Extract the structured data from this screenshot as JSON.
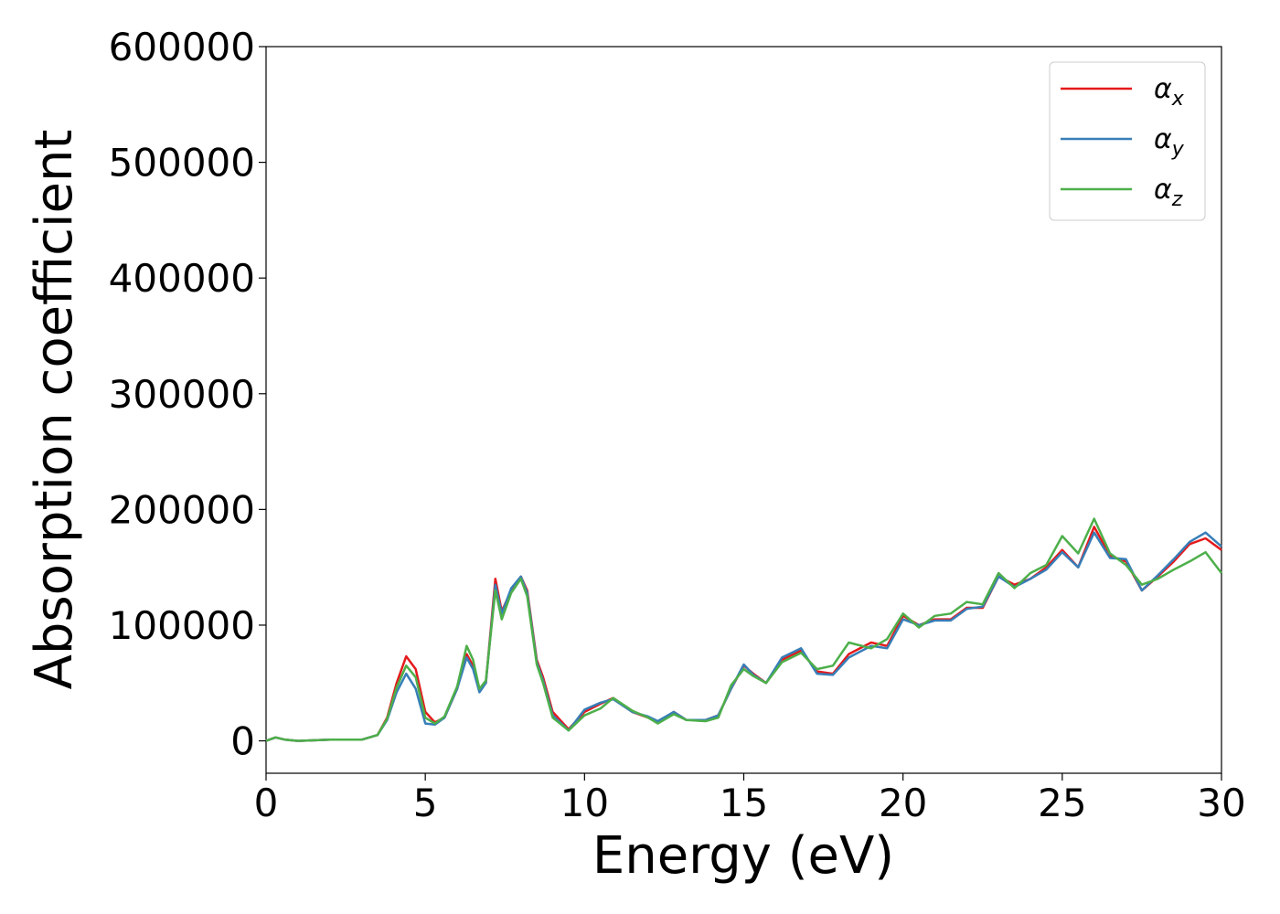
{
  "chart_data": {
    "type": "line",
    "xlabel": "Energy (eV)",
    "ylabel": "Absorption coefficient",
    "x": [
      0,
      0.3,
      0.6,
      1,
      2,
      3,
      3.5,
      3.8,
      4.1,
      4.4,
      4.7,
      5.0,
      5.3,
      5.6,
      6.0,
      6.3,
      6.5,
      6.7,
      6.9,
      7.2,
      7.4,
      7.7,
      8.0,
      8.2,
      8.5,
      8.7,
      9.0,
      9.5,
      10,
      10.5,
      10.9,
      11.5,
      12,
      12.3,
      12.8,
      13.2,
      13.8,
      14.2,
      14.6,
      15,
      15.3,
      15.7,
      16.2,
      16.8,
      17.3,
      17.8,
      18.3,
      19,
      19.5,
      20,
      20.5,
      21,
      21.5,
      22,
      22.5,
      23,
      23.5,
      24,
      24.5,
      25,
      25.5,
      26,
      26.5,
      27,
      27.5,
      28,
      28.5,
      29,
      29.5,
      30
    ],
    "series": [
      {
        "name": "αx",
        "color": "#e41a1c",
        "values": [
          0,
          3000,
          1000,
          0,
          1000,
          1000,
          5000,
          20000,
          50000,
          73000,
          62000,
          25000,
          16000,
          20000,
          45000,
          75000,
          65000,
          45000,
          50000,
          140000,
          112000,
          130000,
          142000,
          130000,
          70000,
          55000,
          25000,
          10000,
          25000,
          32000,
          37000,
          25000,
          20000,
          16000,
          25000,
          18000,
          18000,
          22000,
          45000,
          65000,
          58000,
          50000,
          70000,
          78000,
          60000,
          58000,
          75000,
          85000,
          82000,
          108000,
          100000,
          105000,
          105000,
          115000,
          115000,
          142000,
          135000,
          140000,
          150000,
          165000,
          150000,
          185000,
          160000,
          155000,
          130000,
          142000,
          155000,
          170000,
          175000,
          165000
        ]
      },
      {
        "name": "αy",
        "color": "#377eb8",
        "values": [
          0,
          3000,
          1000,
          0,
          1000,
          1000,
          5000,
          18000,
          42000,
          58000,
          45000,
          15000,
          14000,
          20000,
          45000,
          72000,
          62000,
          42000,
          50000,
          135000,
          110000,
          132000,
          142000,
          128000,
          68000,
          52000,
          22000,
          9000,
          27000,
          33000,
          36000,
          25000,
          21000,
          17000,
          25000,
          18000,
          18000,
          22000,
          45000,
          66000,
          57000,
          50000,
          72000,
          80000,
          58000,
          57000,
          72000,
          82000,
          80000,
          105000,
          100000,
          104000,
          104000,
          114000,
          116000,
          142000,
          133000,
          140000,
          148000,
          163000,
          150000,
          180000,
          158000,
          157000,
          130000,
          143000,
          157000,
          172000,
          180000,
          168000
        ]
      },
      {
        "name": "αz",
        "color": "#4daf4a",
        "values": [
          0,
          3000,
          1000,
          0,
          1000,
          1000,
          5000,
          19000,
          46000,
          65000,
          55000,
          20000,
          15000,
          21000,
          47000,
          82000,
          70000,
          45000,
          52000,
          130000,
          105000,
          128000,
          140000,
          125000,
          66000,
          50000,
          20000,
          9000,
          22000,
          28000,
          37000,
          26000,
          20000,
          15000,
          23000,
          18000,
          17000,
          20000,
          48000,
          62000,
          56000,
          50000,
          68000,
          76000,
          62000,
          65000,
          85000,
          80000,
          88000,
          110000,
          98000,
          108000,
          110000,
          120000,
          118000,
          145000,
          132000,
          145000,
          152000,
          177000,
          162000,
          192000,
          162000,
          152000,
          135000,
          140000,
          148000,
          155000,
          163000,
          145000
        ]
      }
    ],
    "xlim": [
      0,
      30
    ],
    "xticks": [
      0,
      5,
      10,
      15,
      20,
      25,
      30
    ],
    "ylim": [
      -28000,
      600000
    ],
    "yticks": [
      0,
      100000,
      200000,
      300000,
      400000,
      500000,
      600000
    ],
    "legend": "upper right"
  }
}
